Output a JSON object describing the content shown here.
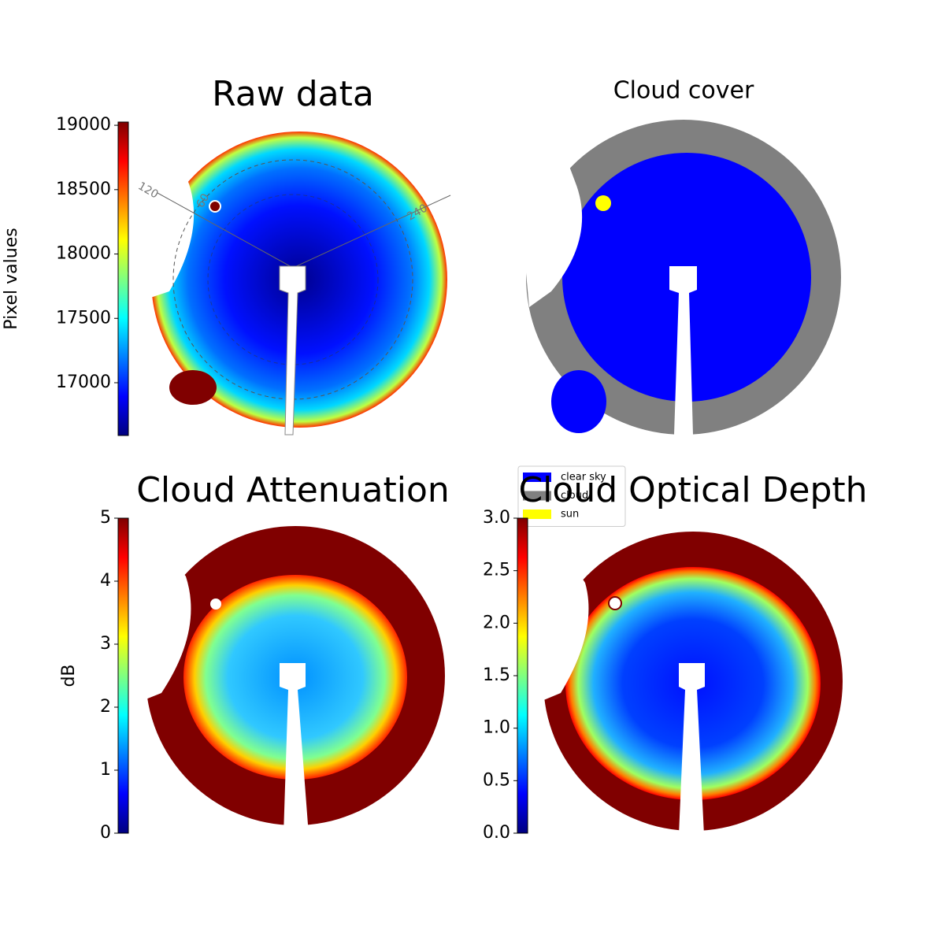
{
  "chart_data": [
    {
      "type": "image",
      "title": "Raw data",
      "colorbar_label": "Pixel values",
      "colormap": "jet",
      "ylim": [
        16590,
        19025
      ],
      "yticks": [
        17000,
        17500,
        18000,
        18500,
        19000
      ],
      "annotations": [
        "120",
        "60",
        "240"
      ]
    },
    {
      "type": "image",
      "title": "Cloud cover",
      "series": [
        {
          "name": "clear sky",
          "color": "#0000ff"
        },
        {
          "name": "cloud",
          "color": "#808080"
        },
        {
          "name": "sun",
          "color": "#ffff00"
        }
      ]
    },
    {
      "type": "image",
      "title": "Cloud Attenuation",
      "colorbar_label": "dB",
      "colormap": "jet",
      "ylim": [
        0,
        5
      ],
      "yticks": [
        0,
        1,
        2,
        3,
        4,
        5
      ]
    },
    {
      "type": "image",
      "title": "Cloud Optical Depth",
      "colormap": "jet",
      "ylim": [
        0,
        3
      ],
      "yticks": [
        {
          "value": 0,
          "label": "0.0"
        },
        {
          "value": 0.5,
          "label": "0.5"
        },
        {
          "value": 1,
          "label": "1.0"
        },
        {
          "value": 1.5,
          "label": "1.5"
        },
        {
          "value": 2,
          "label": "2.0"
        },
        {
          "value": 2.5,
          "label": "2.5"
        },
        {
          "value": 3,
          "label": "3.0"
        }
      ]
    }
  ]
}
